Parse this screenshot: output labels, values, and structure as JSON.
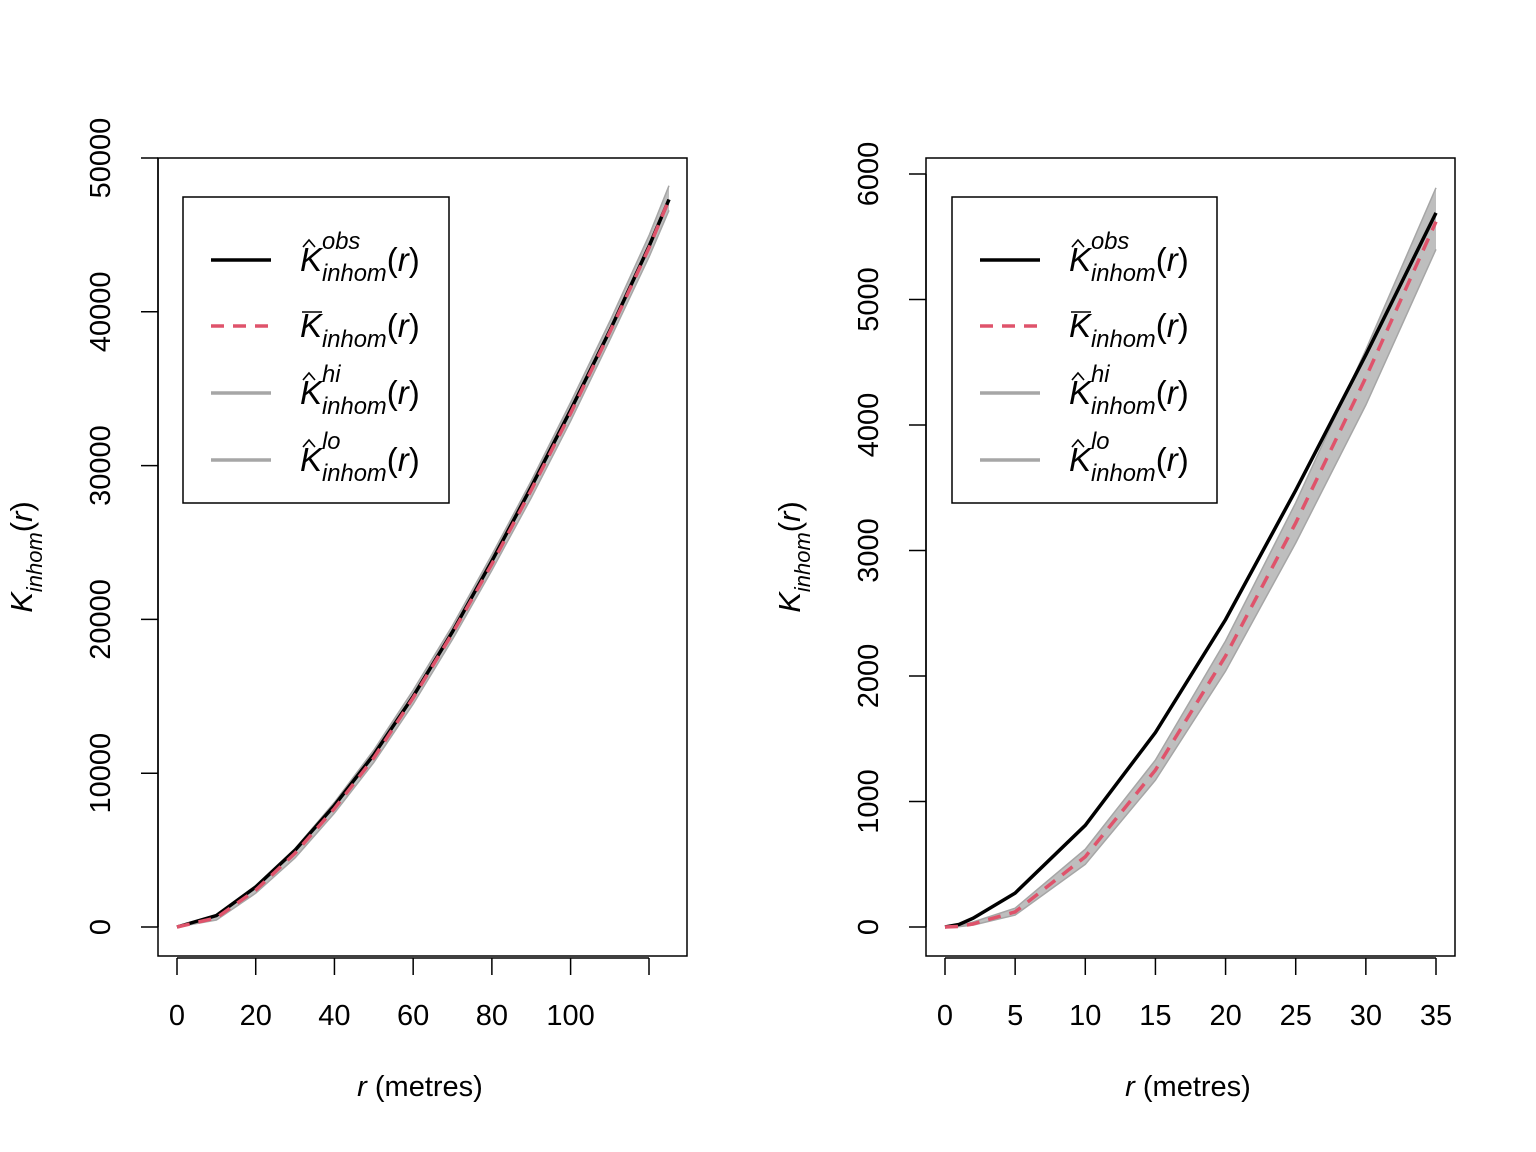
{
  "colors": {
    "observed": "#000000",
    "theoretical": "#DF536B",
    "envelope": "#BEBEBE",
    "envelope_line": "#A6A6A6"
  },
  "chart_data": [
    {
      "type": "line",
      "xlabel": "r (metres)",
      "ylabel": "K_inhom(r)",
      "xlim": [
        0,
        130
      ],
      "ylim": [
        -2500,
        50000
      ],
      "x_ticks": [
        0,
        20,
        40,
        60,
        80,
        100
      ],
      "y_ticks": [
        0,
        10000,
        20000,
        30000,
        40000,
        50000
      ],
      "grid": false,
      "legend_position": "top-left",
      "x": [
        0,
        10,
        20,
        30,
        40,
        50,
        60,
        70,
        80,
        90,
        100,
        110,
        120,
        125
      ],
      "series": [
        {
          "name": "K̂ obs inhom(r)",
          "style": "solid-black",
          "values": [
            0,
            750,
            2600,
            5000,
            7900,
            11200,
            15000,
            19200,
            23800,
            28600,
            33600,
            38800,
            44300,
            47300
          ]
        },
        {
          "name": "K̄ inhom(r)",
          "style": "dashed-red",
          "values": [
            0,
            600,
            2400,
            4800,
            7700,
            11000,
            14900,
            19100,
            23600,
            28400,
            33400,
            38700,
            44200,
            47300
          ]
        },
        {
          "name": "K̂ hi inhom(r)",
          "style": "gray-band-upper",
          "values": [
            0,
            800,
            2700,
            5100,
            8100,
            11500,
            15400,
            19600,
            24200,
            29000,
            34100,
            39400,
            45000,
            48200
          ]
        },
        {
          "name": "K̂ lo inhom(r)",
          "style": "gray-band-lower",
          "values": [
            0,
            450,
            2200,
            4500,
            7400,
            10700,
            14500,
            18700,
            23200,
            27900,
            32900,
            38200,
            43600,
            46600
          ]
        }
      ]
    },
    {
      "type": "line",
      "xlabel": "r (metres)",
      "ylabel": "K_inhom(r)",
      "xlim": [
        0,
        35
      ],
      "ylim": [
        -200,
        6000
      ],
      "x_ticks": [
        0,
        5,
        10,
        15,
        20,
        25,
        30,
        35
      ],
      "y_ticks": [
        0,
        1000,
        2000,
        3000,
        4000,
        5000,
        6000
      ],
      "grid": false,
      "legend_position": "top-left",
      "x": [
        0,
        1,
        2,
        5,
        10,
        15,
        20,
        25,
        30,
        35
      ],
      "series": [
        {
          "name": "K̂ obs inhom(r)",
          "style": "solid-black",
          "values": [
            0,
            20,
            70,
            270,
            810,
            1550,
            2450,
            3480,
            4560,
            5690
          ]
        },
        {
          "name": "K̄ inhom(r)",
          "style": "dashed-red",
          "values": [
            0,
            5,
            25,
            120,
            560,
            1250,
            2160,
            3220,
            4380,
            5620
          ]
        },
        {
          "name": "K̂ hi inhom(r)",
          "style": "gray-band-upper",
          "values": [
            0,
            10,
            40,
            150,
            620,
            1330,
            2280,
            3380,
            4600,
            5890
          ]
        },
        {
          "name": "K̂ lo inhom(r)",
          "style": "gray-band-lower",
          "values": [
            0,
            3,
            15,
            95,
            500,
            1170,
            2040,
            3060,
            4160,
            5400
          ]
        }
      ]
    }
  ],
  "legend": {
    "entries": [
      {
        "sup": "obs",
        "sub": "inhom",
        "arg": "(r)",
        "accent": "hat"
      },
      {
        "sup": "",
        "sub": "inhom",
        "arg": "(r)",
        "accent": "bar"
      },
      {
        "sup": "hi",
        "sub": "inhom",
        "arg": "(r)",
        "accent": "hat"
      },
      {
        "sup": "lo",
        "sub": "inhom",
        "arg": "(r)",
        "accent": "hat"
      }
    ],
    "letter": "K"
  },
  "labels": {
    "y_letter": "K",
    "y_sub": "inhom",
    "y_arg": "(r)",
    "x_var": "r",
    "x_unit": " (metres)"
  }
}
